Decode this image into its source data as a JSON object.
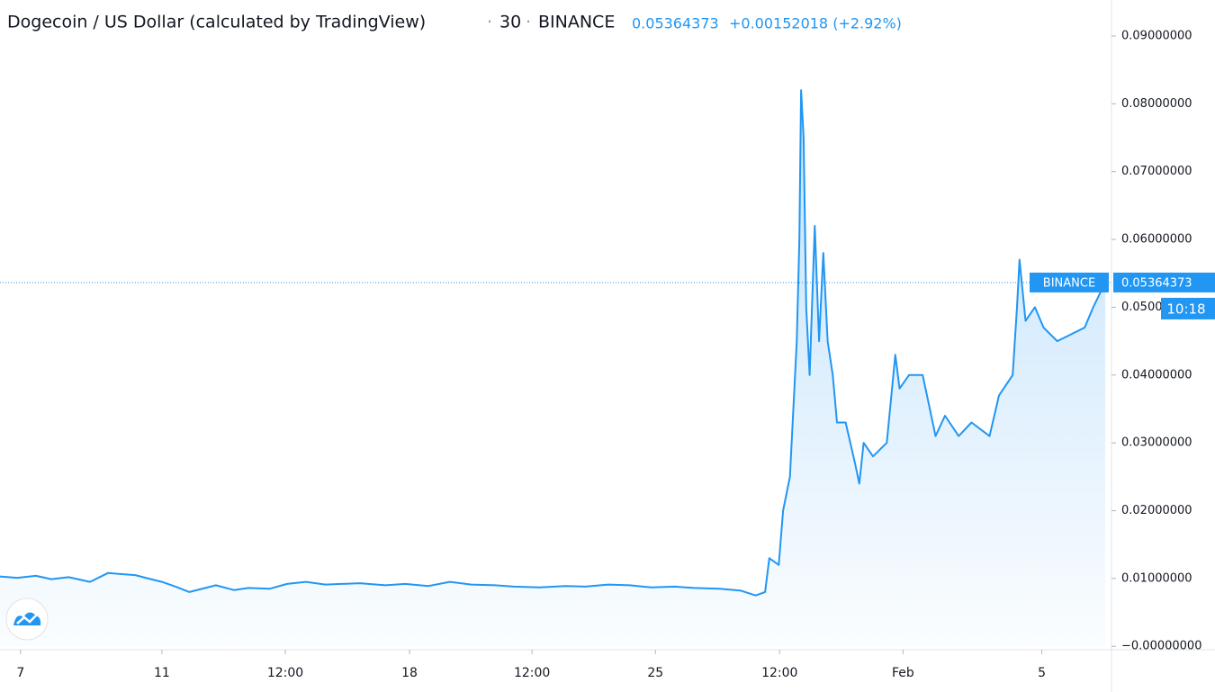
{
  "chart_data": {
    "type": "area",
    "title": "Dogecoin / US Dollar (calculated by TradingView)",
    "separator": "·",
    "interval": "30",
    "exchange": "BINANCE",
    "last_price": 0.05364373,
    "change_label": "+0.00152018 (+2.92%)",
    "countdown": "10:18",
    "color": "#2196f3",
    "x": [
      0,
      2,
      4.2,
      6,
      8,
      10.5,
      12.6,
      15.8,
      17,
      18.9,
      20.5,
      22.1,
      25.2,
      27.3,
      29,
      31.5,
      33.5,
      35.7,
      38,
      42,
      45,
      47.3,
      50,
      52.5,
      55,
      57.8,
      60,
      63,
      66,
      68.3,
      71,
      73.5,
      76,
      78.8,
      81,
      84,
      86.5,
      88.2,
      89.3,
      89.8,
      90.9,
      91.4,
      92.2,
      92.6,
      93,
      93.3,
      93.5,
      93.8,
      94.1,
      94.5,
      95.1,
      95.6,
      96.1,
      96.6,
      97.2,
      97.7,
      98.7,
      99.8,
      100.3,
      100.8,
      101.9,
      103.5,
      104.5,
      105,
      106.1,
      107.7,
      109.2,
      110.3,
      111.9,
      113.4,
      115.5,
      116.6,
      118.2,
      118.7,
      119,
      119.7,
      120.8,
      121.8,
      123.4,
      125,
      126.6,
      127.6,
      129
    ],
    "values": [
      0.0103,
      0.0101,
      0.0104,
      0.0099,
      0.0102,
      0.0095,
      0.0108,
      0.0105,
      0.0101,
      0.0095,
      0.0088,
      0.008,
      0.009,
      0.0083,
      0.0086,
      0.0085,
      0.0092,
      0.0095,
      0.0091,
      0.0093,
      0.009,
      0.0092,
      0.0089,
      0.0095,
      0.0091,
      0.009,
      0.0088,
      0.0087,
      0.0089,
      0.0088,
      0.0091,
      0.009,
      0.0087,
      0.0088,
      0.0086,
      0.0085,
      0.0082,
      0.0075,
      0.008,
      0.013,
      0.012,
      0.02,
      0.025,
      0.035,
      0.045,
      0.06,
      0.082,
      0.075,
      0.05,
      0.04,
      0.062,
      0.045,
      0.058,
      0.045,
      0.04,
      0.033,
      0.033,
      0.027,
      0.024,
      0.03,
      0.028,
      0.03,
      0.043,
      0.038,
      0.04,
      0.04,
      0.031,
      0.034,
      0.031,
      0.033,
      0.031,
      0.037,
      0.04,
      0.05,
      0.057,
      0.048,
      0.05,
      0.047,
      0.045,
      0.046,
      0.047,
      0.05,
      0.05364373
    ],
    "xlim": [
      0,
      129
    ],
    "ylim": [
      -0.0005,
      0.0953
    ],
    "yticks": [
      {
        "value": 0,
        "label": "−0.00000000"
      },
      {
        "value": 0.01,
        "label": "0.01000000"
      },
      {
        "value": 0.02,
        "label": "0.02000000"
      },
      {
        "value": 0.03,
        "label": "0.03000000"
      },
      {
        "value": 0.04,
        "label": "0.04000000"
      },
      {
        "value": 0.05,
        "label": "0.05000000"
      },
      {
        "value": 0.06,
        "label": "0.06000000"
      },
      {
        "value": 0.07,
        "label": "0.07000000"
      },
      {
        "value": 0.08,
        "label": "0.08000000"
      },
      {
        "value": 0.09,
        "label": "0.09000000"
      }
    ],
    "xticks": [
      {
        "value": 2.4,
        "label": "7"
      },
      {
        "value": 18.9,
        "label": "11"
      },
      {
        "value": 33.3,
        "label": "12:00"
      },
      {
        "value": 47.8,
        "label": "18"
      },
      {
        "value": 62.1,
        "label": "12:00"
      },
      {
        "value": 76.5,
        "label": "25"
      },
      {
        "value": 91,
        "label": "12:00"
      },
      {
        "value": 105.4,
        "label": "Feb"
      },
      {
        "value": 121.6,
        "label": "5"
      }
    ]
  }
}
